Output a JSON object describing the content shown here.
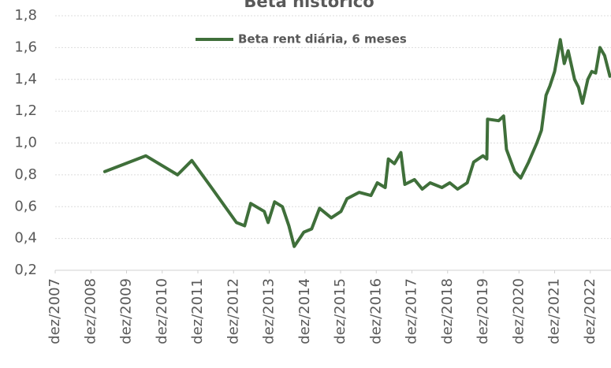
{
  "chart_data": {
    "type": "line",
    "title": "Beta histórico",
    "x": [
      2009.31,
      2010.46,
      2011.35,
      2011.75,
      2012.3,
      2013.0,
      2013.23,
      2013.4,
      2013.78,
      2013.89,
      2014.07,
      2014.29,
      2014.47,
      2014.62,
      2014.89,
      2015.11,
      2015.33,
      2015.66,
      2015.93,
      2016.1,
      2016.44,
      2016.77,
      2016.95,
      2017.17,
      2017.26,
      2017.43,
      2017.61,
      2017.72,
      2017.99,
      2018.21,
      2018.43,
      2018.76,
      2018.98,
      2019.2,
      2019.47,
      2019.65,
      2019.91,
      2020.02,
      2020.04,
      2020.35,
      2020.49,
      2020.57,
      2020.8,
      2020.97,
      2021.19,
      2021.42,
      2021.55,
      2021.68,
      2021.79,
      2021.92,
      2022.08,
      2022.19,
      2022.3,
      2022.48,
      2022.59,
      2022.7,
      2022.85,
      2022.96,
      2023.07,
      2023.19,
      2023.32,
      2023.47
    ],
    "series": [
      {
        "name": "Beta rent diária, 6 meses",
        "color": "#3f6f3a",
        "values": [
          0.82,
          0.92,
          0.8,
          0.89,
          0.72,
          0.5,
          0.48,
          0.62,
          0.57,
          0.5,
          0.63,
          0.6,
          0.48,
          0.35,
          0.44,
          0.46,
          0.59,
          0.53,
          0.57,
          0.65,
          0.69,
          0.67,
          0.75,
          0.72,
          0.9,
          0.87,
          0.94,
          0.74,
          0.77,
          0.71,
          0.75,
          0.72,
          0.75,
          0.71,
          0.75,
          0.88,
          0.92,
          0.9,
          1.15,
          1.14,
          1.17,
          0.96,
          0.82,
          0.78,
          0.88,
          1.0,
          1.08,
          1.3,
          1.36,
          1.45,
          1.65,
          1.5,
          1.58,
          1.4,
          1.35,
          1.25,
          1.4,
          1.45,
          1.44,
          1.6,
          1.55,
          1.42
        ]
      }
    ],
    "xlim": [
      2007.92,
      2023.5
    ],
    "xticks": [
      {
        "value": 2007.92,
        "label": "dez/2007"
      },
      {
        "value": 2008.92,
        "label": "dez/2008"
      },
      {
        "value": 2009.92,
        "label": "dez/2009"
      },
      {
        "value": 2010.92,
        "label": "dez/2010"
      },
      {
        "value": 2011.92,
        "label": "dez/2011"
      },
      {
        "value": 2012.92,
        "label": "dez/2012"
      },
      {
        "value": 2013.92,
        "label": "dez/2013"
      },
      {
        "value": 2014.92,
        "label": "dez/2014"
      },
      {
        "value": 2015.92,
        "label": "dez/2015"
      },
      {
        "value": 2016.92,
        "label": "dez/2016"
      },
      {
        "value": 2017.92,
        "label": "dez/2017"
      },
      {
        "value": 2018.92,
        "label": "dez/2018"
      },
      {
        "value": 2019.92,
        "label": "dez/2019"
      },
      {
        "value": 2020.92,
        "label": "dez/2020"
      },
      {
        "value": 2021.92,
        "label": "dez/2021"
      },
      {
        "value": 2022.92,
        "label": "dez/2022"
      }
    ],
    "ylim": [
      0.2,
      1.8
    ],
    "yticks": [
      {
        "value": 0.2,
        "label": "0,2"
      },
      {
        "value": 0.4,
        "label": "0,4"
      },
      {
        "value": 0.6,
        "label": "0,6"
      },
      {
        "value": 0.8,
        "label": "0,8"
      },
      {
        "value": 1.0,
        "label": "1,0"
      },
      {
        "value": 1.2,
        "label": "1,2"
      },
      {
        "value": 1.4,
        "label": "1,4"
      },
      {
        "value": 1.6,
        "label": "1,6"
      },
      {
        "value": 1.8,
        "label": "1,8"
      }
    ],
    "grid": true,
    "legend": "top"
  }
}
